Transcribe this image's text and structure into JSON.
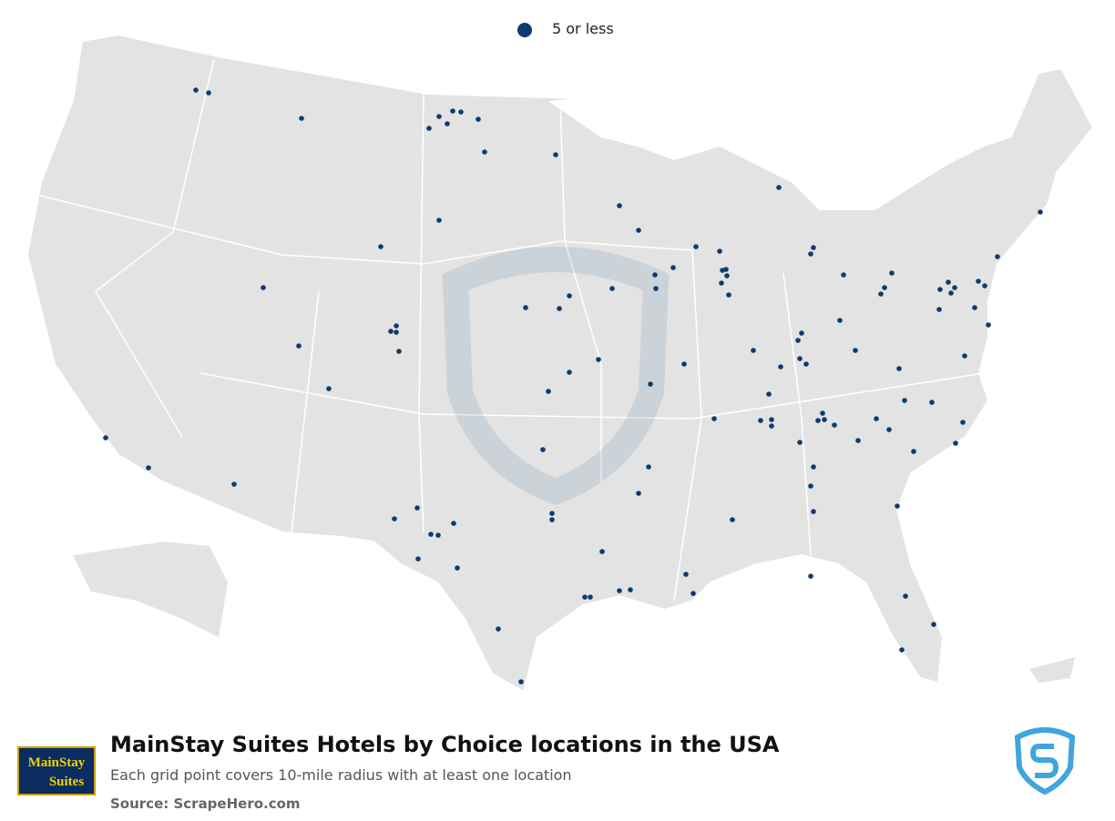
{
  "legend": {
    "label": "5 or less"
  },
  "title": "MainStay Suites Hotels by Choice locations in the USA",
  "subtitle": "Each grid point covers 10-mile radius with at least one location",
  "source": "Source: ScrapeHero.com",
  "brand_logo": {
    "line1": "MainStay",
    "line2": "Suites"
  }
}
